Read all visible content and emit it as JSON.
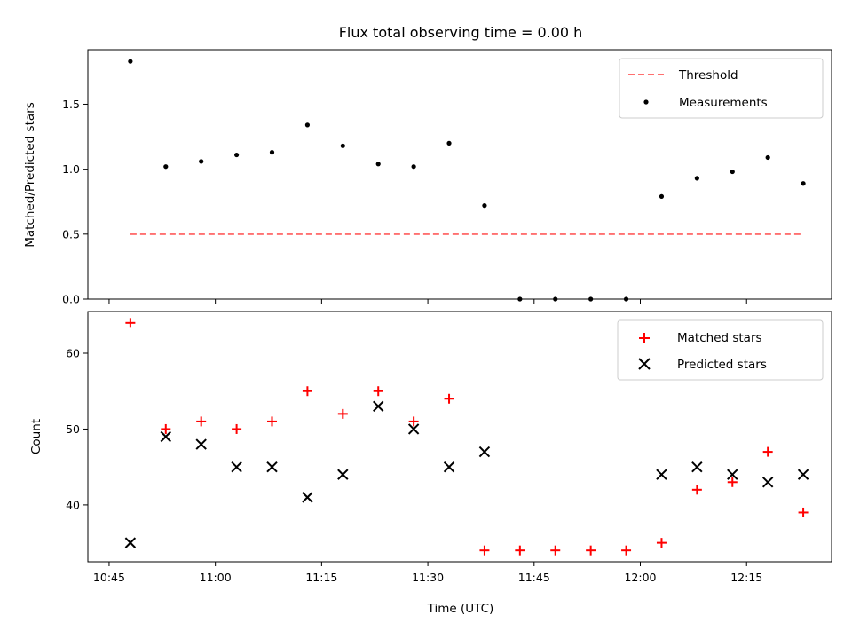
{
  "chart_data": [
    {
      "type": "line+scatter",
      "title": "Flux total observing time = 0.00 h",
      "xlabel": "",
      "ylabel": "Matched/Predicted stars",
      "xlim": [
        "10:42",
        "12:27"
      ],
      "ylim": [
        0,
        1.92
      ],
      "x_ticks": [
        "10:45",
        "11:00",
        "11:15",
        "11:30",
        "11:45",
        "12:00",
        "12:15"
      ],
      "y_ticks": [
        "0.0",
        "0.5",
        "1.0",
        "1.5"
      ],
      "x_times": [
        "10:48",
        "10:53",
        "10:58",
        "11:03",
        "11:08",
        "11:13",
        "11:18",
        "11:23",
        "11:28",
        "11:33",
        "11:38",
        "11:43",
        "11:48",
        "11:53",
        "11:58",
        "12:03",
        "12:08",
        "12:13",
        "12:18",
        "12:23"
      ],
      "legend_position": "upper right",
      "series": [
        {
          "name": "Threshold",
          "style": "dashed-line",
          "color": "#ff7070",
          "x": [
            "10:48",
            "12:23"
          ],
          "values": [
            0.5,
            0.5
          ]
        },
        {
          "name": "Measurements",
          "style": "dot",
          "color": "#000000",
          "values": [
            1.83,
            1.02,
            1.06,
            1.11,
            1.13,
            1.34,
            1.18,
            1.04,
            1.02,
            1.2,
            0.72,
            0.0,
            0.0,
            0.0,
            0.0,
            0.79,
            0.93,
            0.98,
            1.09,
            0.89
          ]
        }
      ]
    },
    {
      "type": "scatter",
      "title": "",
      "xlabel": "Time (UTC)",
      "ylabel": "Count",
      "xlim": [
        "10:42",
        "12:27"
      ],
      "ylim": [
        32.5,
        65.5
      ],
      "x_ticks": [
        "10:45",
        "11:00",
        "11:15",
        "11:30",
        "11:45",
        "12:00",
        "12:15"
      ],
      "y_ticks": [
        "40",
        "50",
        "60"
      ],
      "x_times": [
        "10:48",
        "10:53",
        "10:58",
        "11:03",
        "11:08",
        "11:13",
        "11:18",
        "11:23",
        "11:28",
        "11:33",
        "11:38",
        "11:43",
        "11:48",
        "11:53",
        "11:58",
        "12:03",
        "12:08",
        "12:13",
        "12:18",
        "12:23"
      ],
      "legend_position": "upper right",
      "series": [
        {
          "name": "Matched stars",
          "marker": "plus",
          "color": "#ff0000",
          "values": [
            64,
            50,
            51,
            50,
            51,
            55,
            52,
            55,
            51,
            54,
            34,
            34,
            34,
            34,
            34,
            35,
            42,
            43,
            47,
            39
          ]
        },
        {
          "name": "Predicted stars",
          "marker": "x",
          "color": "#000000",
          "values": [
            35,
            49,
            48,
            45,
            45,
            41,
            44,
            53,
            50,
            45,
            47,
            null,
            null,
            null,
            null,
            44,
            45,
            44,
            43,
            44
          ]
        }
      ]
    }
  ]
}
